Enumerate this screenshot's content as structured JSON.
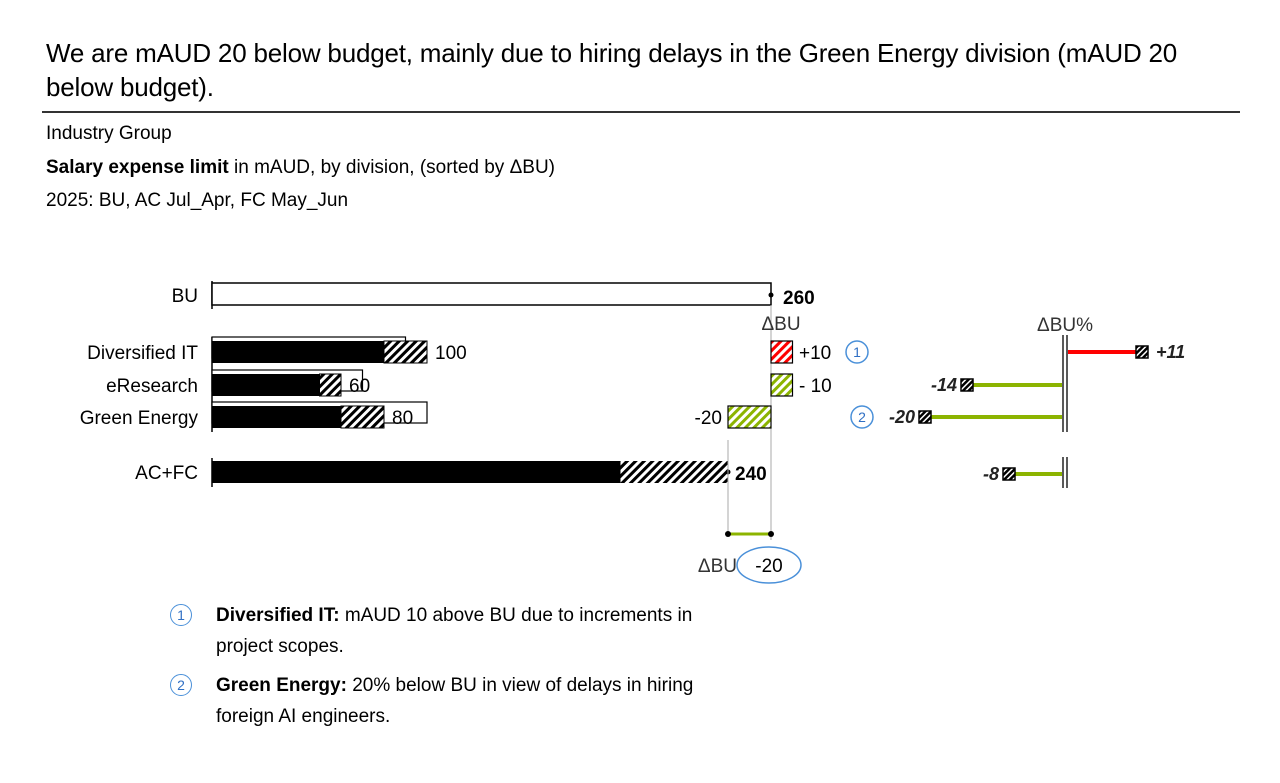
{
  "headline": "We are mAUD 20 below budget, mainly due to hiring delays in the Green Energy division (mAUD 20 below budget).",
  "subtitle": {
    "entity": "Industry Group",
    "measure_bold": "Salary expense limit",
    "measure_rest": " in mAUD, by division, (sorted by ΔBU)",
    "scenario": "2025: BU, AC Jul_Apr, FC May_Jun"
  },
  "chart_data": {
    "type": "bar",
    "title": "Salary expense limit in mAUD, by division, (sorted by ΔBU)",
    "unit": "mAUD",
    "categories": [
      "Diversified IT",
      "eResearch",
      "Green Energy"
    ],
    "series": [
      {
        "name": "AC",
        "values": [
          80,
          50,
          60
        ]
      },
      {
        "name": "FC",
        "values": [
          20,
          10,
          20
        ]
      },
      {
        "name": "AC+FC",
        "values": [
          100,
          60,
          80
        ]
      },
      {
        "name": "BU",
        "values": [
          90,
          70,
          100
        ]
      }
    ],
    "value_labels": [
      "100",
      "60",
      "80"
    ],
    "total_bu": {
      "label": "BU",
      "value": 260,
      "value_label": "260"
    },
    "total_acfc": {
      "label": "AC+FC",
      "value": 240,
      "ac": 190,
      "fc": 50,
      "value_label": "240"
    },
    "delta_bu": {
      "header": "ΔBU",
      "values": [
        10,
        -10,
        -20
      ],
      "labels": [
        "+10",
        "- 10",
        "-20"
      ],
      "total": -20,
      "total_label": "-20",
      "total_header": "ΔBU"
    },
    "delta_bu_pct": {
      "header": "ΔBU%",
      "values": [
        11,
        -14,
        -20
      ],
      "labels": [
        "+11",
        "-14",
        "-20"
      ],
      "total": -8,
      "total_label": "-8"
    },
    "colors": {
      "ac": "#000000",
      "positive_variance": "#ff0000",
      "negative_variance": "#8cb400",
      "annotation": "#4a90d9"
    },
    "annotations": [
      {
        "marker": "1",
        "category": "Diversified IT"
      },
      {
        "marker": "2",
        "category": "Green Energy"
      }
    ]
  },
  "notes": [
    {
      "marker": "1",
      "bold": "Diversified IT:",
      "text": " mAUD 10 above BU due to increments in project scopes."
    },
    {
      "marker": "2",
      "bold": "Green Energy:",
      "text": " 20% below BU in view of delays in hiring foreign AI engineers."
    }
  ]
}
